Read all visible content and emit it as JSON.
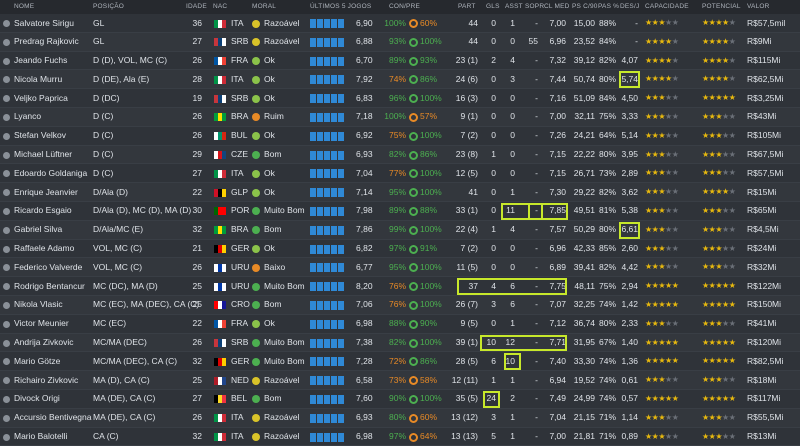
{
  "headers": {
    "name": "NOME",
    "pos": "POSIÇÃO",
    "age": "IDADE",
    "nat": "NAC",
    "morale": "MORAL",
    "last5": "ÚLTIMOS 5 JOGOS",
    "con_pre": "CON/PRE",
    "part": "PART",
    "gls": "GLS",
    "asst": "ASST",
    "sopr": "SOPR",
    "clmed": "CL MED",
    "ps_c90": "PS C/90",
    "pas_pct": "PAS %",
    "des": "DES/J",
    "cap": "CAPACIDADE",
    "pot": "POTENCIAL",
    "val": "VALOR"
  },
  "colors": {
    "good": "#4caf50",
    "ok": "#8bc34a",
    "poor": "#e88a26",
    "star": "#e8b90e",
    "highlight": "#c7e82b",
    "bar": "#2f89d6"
  },
  "players": [
    {
      "name": "Salvatore Sirigu",
      "pos": "GL",
      "age": "36",
      "nat": "ITA",
      "flag": [
        "#009246",
        "#ffffff",
        "#ce2b37"
      ],
      "morale": "Razoável",
      "mcolor": "#d9c329",
      "rating": "6,90",
      "con": "100%",
      "ccol": "#4caf50",
      "pre": "60%",
      "pcol": "#e88a26",
      "part": "44",
      "gls": "0",
      "asst": "1",
      "sopr": "-",
      "clmed": "7,00",
      "ps": "15,00",
      "pas": "88%",
      "des": "-",
      "cap": "3",
      "pot": "3.5",
      "val": "R$57,5mil"
    },
    {
      "name": "Predrag Rajkovic",
      "pos": "GL",
      "age": "27",
      "nat": "SRB",
      "flag": [
        "#c6363c",
        "#0c4076",
        "#ffffff"
      ],
      "morale": "Razoável",
      "mcolor": "#d9c329",
      "rating": "6,88",
      "con": "93%",
      "ccol": "#4caf50",
      "pre": "100%",
      "pcol": "#4caf50",
      "part": "44",
      "gls": "0",
      "asst": "0",
      "sopr": "55",
      "clmed": "6,96",
      "ps": "23,52",
      "pas": "84%",
      "des": "-",
      "cap": "3.5",
      "pot": "4",
      "val": "R$9Mi"
    },
    {
      "name": "Jeando Fuchs",
      "pos": "D (D), VOL, MC (C)",
      "age": "26",
      "nat": "FRA",
      "flag": [
        "#0055a4",
        "#ffffff",
        "#ef4135"
      ],
      "morale": "Ok",
      "mcolor": "#8bc34a",
      "rating": "6,70",
      "con": "89%",
      "ccol": "#4caf50",
      "pre": "93%",
      "pcol": "#4caf50",
      "part": "23 (1)",
      "gls": "2",
      "asst": "4",
      "sopr": "-",
      "clmed": "7,32",
      "ps": "39,12",
      "pas": "82%",
      "des": "4,07",
      "cap": "3.5",
      "pot": "3.5",
      "val": "R$115Mi"
    },
    {
      "name": "Nicola Murru",
      "pos": "D (DE), Ala (E)",
      "age": "28",
      "nat": "ITA",
      "flag": [
        "#009246",
        "#ffffff",
        "#ce2b37"
      ],
      "morale": "Ok",
      "mcolor": "#8bc34a",
      "rating": "7,92",
      "con": "74%",
      "ccol": "#e88a26",
      "pre": "86%",
      "pcol": "#4caf50",
      "part": "24 (6)",
      "gls": "0",
      "asst": "3",
      "sopr": "-",
      "clmed": "7,44",
      "ps": "50,74",
      "pas": "80%",
      "des": "5,74",
      "cap": "3.5",
      "pot": "3.5",
      "val": "R$62,5Mi"
    },
    {
      "name": "Veljko Paprica",
      "pos": "D (DC)",
      "age": "19",
      "nat": "SRB",
      "flag": [
        "#c6363c",
        "#0c4076",
        "#ffffff"
      ],
      "morale": "Ok",
      "mcolor": "#8bc34a",
      "rating": "6,83",
      "con": "96%",
      "ccol": "#4caf50",
      "pre": "100%",
      "pcol": "#4caf50",
      "part": "16 (3)",
      "gls": "0",
      "asst": "0",
      "sopr": "-",
      "clmed": "7,16",
      "ps": "51,09",
      "pas": "84%",
      "des": "4,50",
      "cap": "3",
      "pot": "5",
      "val": "R$3,25Mi"
    },
    {
      "name": "Lyanco",
      "pos": "D (C)",
      "age": "26",
      "nat": "BRA",
      "flag": [
        "#009c3b",
        "#ffdf00",
        "#009c3b"
      ],
      "morale": "Ruim",
      "mcolor": "#e88a26",
      "rating": "7,18",
      "con": "100%",
      "ccol": "#4caf50",
      "pre": "57%",
      "pcol": "#e88a26",
      "part": "9 (1)",
      "gls": "0",
      "asst": "0",
      "sopr": "-",
      "clmed": "7,00",
      "ps": "32,11",
      "pas": "75%",
      "des": "3,33",
      "cap": "3",
      "pot": "3",
      "val": "R$43Mi"
    },
    {
      "name": "Stefan Velkov",
      "pos": "D (C)",
      "age": "26",
      "nat": "BUL",
      "flag": [
        "#ffffff",
        "#00966e",
        "#d62612"
      ],
      "morale": "Ok",
      "mcolor": "#8bc34a",
      "rating": "6,92",
      "con": "75%",
      "ccol": "#e88a26",
      "pre": "100%",
      "pcol": "#4caf50",
      "part": "7 (2)",
      "gls": "0",
      "asst": "0",
      "sopr": "-",
      "clmed": "7,26",
      "ps": "24,21",
      "pas": "64%",
      "des": "5,14",
      "cap": "3",
      "pot": "3",
      "val": "R$105Mi"
    },
    {
      "name": "Michael Lüftner",
      "pos": "D (C)",
      "age": "29",
      "nat": "CZE",
      "flag": [
        "#ffffff",
        "#d7141a",
        "#11457e"
      ],
      "morale": "Bom",
      "mcolor": "#4caf50",
      "rating": "6,93",
      "con": "82%",
      "ccol": "#4caf50",
      "pre": "86%",
      "pcol": "#4caf50",
      "part": "23 (8)",
      "gls": "1",
      "asst": "0",
      "sopr": "-",
      "clmed": "7,15",
      "ps": "22,22",
      "pas": "80%",
      "des": "3,95",
      "cap": "3",
      "pot": "3",
      "val": "R$67,5Mi"
    },
    {
      "name": "Edoardo Goldaniga",
      "pos": "D (C)",
      "age": "27",
      "nat": "ITA",
      "flag": [
        "#009246",
        "#ffffff",
        "#ce2b37"
      ],
      "morale": "Ok",
      "mcolor": "#8bc34a",
      "rating": "7,04",
      "con": "77%",
      "ccol": "#e88a26",
      "pre": "100%",
      "pcol": "#4caf50",
      "part": "12 (5)",
      "gls": "0",
      "asst": "0",
      "sopr": "-",
      "clmed": "7,15",
      "ps": "26,71",
      "pas": "73%",
      "des": "2,89",
      "cap": "3",
      "pot": "3",
      "val": "R$57,5Mi"
    },
    {
      "name": "Enrique Jeanvier",
      "pos": "D/Ala (D)",
      "age": "22",
      "nat": "GLP",
      "flag": [
        "#ce1126",
        "#000000",
        "#ffd100"
      ],
      "morale": "Ok",
      "mcolor": "#8bc34a",
      "rating": "7,14",
      "con": "95%",
      "ccol": "#4caf50",
      "pre": "100%",
      "pcol": "#4caf50",
      "part": "41",
      "gls": "0",
      "asst": "1",
      "sopr": "-",
      "clmed": "7,30",
      "ps": "29,22",
      "pas": "82%",
      "des": "3,62",
      "cap": "3",
      "pot": "3.5",
      "val": "R$15Mi"
    },
    {
      "name": "Ricardo Esgaio",
      "pos": "D/Ala (D), MC (D), MA (D)",
      "age": "30",
      "nat": "POR",
      "flag": [
        "#006600",
        "#ff0000",
        "#ff0000"
      ],
      "morale": "Muito Bom",
      "mcolor": "#4caf50",
      "rating": "7,98",
      "con": "89%",
      "ccol": "#4caf50",
      "pre": "88%",
      "pcol": "#4caf50",
      "part": "33 (1)",
      "gls": "0",
      "asst": "11",
      "sopr": "-",
      "clmed": "7,85",
      "ps": "49,51",
      "pas": "81%",
      "des": "5,38",
      "cap": "3",
      "pot": "3",
      "val": "R$65Mi"
    },
    {
      "name": "Gabriel Silva",
      "pos": "D/Ala/MC (E)",
      "age": "32",
      "nat": "BRA",
      "flag": [
        "#009c3b",
        "#ffdf00",
        "#009c3b"
      ],
      "morale": "Bom",
      "mcolor": "#4caf50",
      "rating": "7,86",
      "con": "99%",
      "ccol": "#4caf50",
      "pre": "100%",
      "pcol": "#4caf50",
      "part": "22 (4)",
      "gls": "1",
      "asst": "4",
      "sopr": "-",
      "clmed": "7,57",
      "ps": "50,29",
      "pas": "80%",
      "des": "6,61",
      "cap": "3",
      "pot": "3",
      "val": "R$4,5Mi"
    },
    {
      "name": "Raffaele Adamo",
      "pos": "VOL, MC (C)",
      "age": "21",
      "nat": "GER",
      "flag": [
        "#000000",
        "#dd0000",
        "#ffce00"
      ],
      "morale": "Ok",
      "mcolor": "#8bc34a",
      "rating": "6,82",
      "con": "97%",
      "ccol": "#4caf50",
      "pre": "91%",
      "pcol": "#4caf50",
      "part": "7 (2)",
      "gls": "0",
      "asst": "0",
      "sopr": "-",
      "clmed": "6,96",
      "ps": "42,33",
      "pas": "85%",
      "des": "2,60",
      "cap": "3",
      "pot": "3",
      "val": "R$24Mi"
    },
    {
      "name": "Federico Valverde",
      "pos": "VOL, MC (C)",
      "age": "26",
      "nat": "URU",
      "flag": [
        "#ffffff",
        "#0038a8",
        "#ffffff"
      ],
      "morale": "Baixo",
      "mcolor": "#e88a26",
      "rating": "6,77",
      "con": "95%",
      "ccol": "#4caf50",
      "pre": "100%",
      "pcol": "#4caf50",
      "part": "11 (5)",
      "gls": "0",
      "asst": "0",
      "sopr": "-",
      "clmed": "6,89",
      "ps": "39,41",
      "pas": "82%",
      "des": "4,42",
      "cap": "3",
      "pot": "3",
      "val": "R$32Mi"
    },
    {
      "name": "Rodrigo Bentancur",
      "pos": "MC (DC), MA (D)",
      "age": "25",
      "nat": "URU",
      "flag": [
        "#ffffff",
        "#0038a8",
        "#ffffff"
      ],
      "morale": "Muito Bom",
      "mcolor": "#4caf50",
      "rating": "8,20",
      "con": "76%",
      "ccol": "#e88a26",
      "pre": "100%",
      "pcol": "#4caf50",
      "part": "37",
      "gls": "4",
      "asst": "6",
      "sopr": "-",
      "clmed": "7,75",
      "ps": "48,11",
      "pas": "75%",
      "des": "2,94",
      "cap": "4.5",
      "pot": "4.5",
      "val": "R$122Mi"
    },
    {
      "name": "Nikola Vlasic",
      "pos": "MC (EC), MA (DEC), CA (C)",
      "age": "25",
      "nat": "CRO",
      "flag": [
        "#ff0000",
        "#ffffff",
        "#171796"
      ],
      "morale": "Bom",
      "mcolor": "#4caf50",
      "rating": "7,06",
      "con": "76%",
      "ccol": "#e88a26",
      "pre": "100%",
      "pcol": "#4caf50",
      "part": "26 (7)",
      "gls": "3",
      "asst": "6",
      "sopr": "-",
      "clmed": "7,07",
      "ps": "32,25",
      "pas": "74%",
      "des": "1,42",
      "cap": "4.5",
      "pot": "4.5",
      "val": "R$150Mi"
    },
    {
      "name": "Victor Meunier",
      "pos": "MC (EC)",
      "age": "22",
      "nat": "FRA",
      "flag": [
        "#0055a4",
        "#ffffff",
        "#ef4135"
      ],
      "morale": "Ok",
      "mcolor": "#8bc34a",
      "rating": "6,98",
      "con": "88%",
      "ccol": "#4caf50",
      "pre": "90%",
      "pcol": "#4caf50",
      "part": "9 (5)",
      "gls": "0",
      "asst": "1",
      "sopr": "-",
      "clmed": "7,12",
      "ps": "36,74",
      "pas": "80%",
      "des": "2,33",
      "cap": "3",
      "pot": "3",
      "val": "R$41Mi"
    },
    {
      "name": "Andrija Zivkovic",
      "pos": "MC/MA (DEC)",
      "age": "26",
      "nat": "SRB",
      "flag": [
        "#c6363c",
        "#0c4076",
        "#ffffff"
      ],
      "morale": "Muito Bom",
      "mcolor": "#4caf50",
      "rating": "7,38",
      "con": "82%",
      "ccol": "#4caf50",
      "pre": "100%",
      "pcol": "#4caf50",
      "part": "39 (1)",
      "gls": "10",
      "asst": "12",
      "sopr": "-",
      "clmed": "7,71",
      "ps": "31,95",
      "pas": "67%",
      "des": "1,40",
      "cap": "4.5",
      "pot": "4.5",
      "val": "R$120Mi"
    },
    {
      "name": "Mario Götze",
      "pos": "MC/MA (DEC), CA (C)",
      "age": "32",
      "nat": "GER",
      "flag": [
        "#000000",
        "#dd0000",
        "#ffce00"
      ],
      "morale": "Muito Bom",
      "mcolor": "#4caf50",
      "rating": "7,28",
      "con": "72%",
      "ccol": "#e88a26",
      "pre": "86%",
      "pcol": "#4caf50",
      "part": "28 (5)",
      "gls": "6",
      "asst": "10",
      "sopr": "-",
      "clmed": "7,40",
      "ps": "33,30",
      "pas": "74%",
      "des": "1,36",
      "cap": "4.5",
      "pot": "4.5",
      "val": "R$82,5Mi"
    },
    {
      "name": "Richairo Zivkovic",
      "pos": "MA (D), CA (C)",
      "age": "25",
      "nat": "NED",
      "flag": [
        "#ae1c28",
        "#ffffff",
        "#21468b"
      ],
      "morale": "Razoável",
      "mcolor": "#d9c329",
      "rating": "6,58",
      "con": "73%",
      "ccol": "#e88a26",
      "pre": "58%",
      "pcol": "#e88a26",
      "part": "12 (11)",
      "gls": "1",
      "asst": "1",
      "sopr": "-",
      "clmed": "6,94",
      "ps": "19,52",
      "pas": "74%",
      "des": "0,61",
      "cap": "3",
      "pot": "3",
      "val": "R$18Mi"
    },
    {
      "name": "Divock Origi",
      "pos": "MA (DE), CA (C)",
      "age": "27",
      "nat": "BEL",
      "flag": [
        "#000000",
        "#fdda24",
        "#ef3340"
      ],
      "morale": "Bom",
      "mcolor": "#4caf50",
      "rating": "7,60",
      "con": "90%",
      "ccol": "#4caf50",
      "pre": "100%",
      "pcol": "#4caf50",
      "part": "35 (5)",
      "gls": "24",
      "asst": "2",
      "sopr": "-",
      "clmed": "7,49",
      "ps": "24,99",
      "pas": "74%",
      "des": "0,57",
      "cap": "4.5",
      "pot": "4.5",
      "val": "R$117Mi"
    },
    {
      "name": "Accursio Bentivegna",
      "pos": "MA (DE), CA (C)",
      "age": "26",
      "nat": "ITA",
      "flag": [
        "#009246",
        "#ffffff",
        "#ce2b37"
      ],
      "morale": "Razoável",
      "mcolor": "#d9c329",
      "rating": "6,93",
      "con": "80%",
      "ccol": "#4caf50",
      "pre": "60%",
      "pcol": "#e88a26",
      "part": "13 (12)",
      "gls": "3",
      "asst": "1",
      "sopr": "-",
      "clmed": "7,04",
      "ps": "21,15",
      "pas": "71%",
      "des": "1,14",
      "cap": "3",
      "pot": "3",
      "val": "R$55,5Mi"
    },
    {
      "name": "Mario Balotelli",
      "pos": "CA (C)",
      "age": "32",
      "nat": "ITA",
      "flag": [
        "#009246",
        "#ffffff",
        "#ce2b37"
      ],
      "morale": "Razoável",
      "mcolor": "#d9c329",
      "rating": "6,98",
      "con": "97%",
      "ccol": "#4caf50",
      "pre": "64%",
      "pcol": "#e88a26",
      "part": "13 (13)",
      "gls": "5",
      "asst": "1",
      "sopr": "-",
      "clmed": "7,00",
      "ps": "21,81",
      "pas": "71%",
      "des": "0,89",
      "cap": "3",
      "pot": "3",
      "val": "R$13Mi"
    }
  ]
}
